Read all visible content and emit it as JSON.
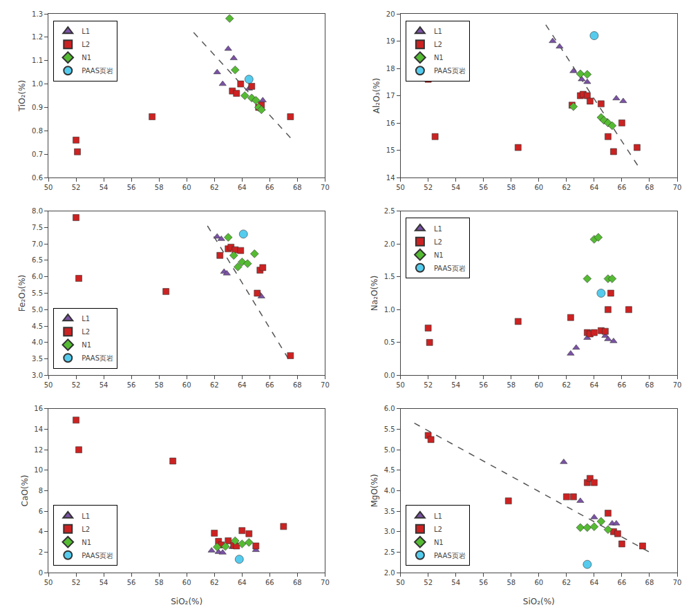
{
  "chart_data": [
    {
      "type": "scatter",
      "ylabel": "TiO₂(%)",
      "xlim": [
        50,
        70
      ],
      "xticks": [
        50,
        52,
        54,
        56,
        58,
        60,
        62,
        64,
        66,
        68,
        70
      ],
      "ylim": [
        0.6,
        1.3
      ],
      "yticks": [
        0.6,
        0.7,
        0.8,
        0.9,
        {
          "value": 1.0,
          "label": "1.0"
        },
        1.1,
        1.2,
        1.3
      ],
      "legend": "upper left",
      "grid": false,
      "series": [
        {
          "type": "line",
          "color": "#555555",
          "line_style": "dashed",
          "x": [
            60.5,
            67.5
          ],
          "values": [
            1.22,
            0.77
          ]
        },
        {
          "name": "L1",
          "color": "#7B52A6",
          "marker": "triangle-up",
          "x": [
            62.2,
            62.6,
            63.0,
            63.4,
            64.5,
            65.5
          ],
          "values": [
            1.05,
            1.0,
            1.15,
            1.11,
            0.98,
            0.93
          ]
        },
        {
          "name": "L2",
          "color": "#CC2222",
          "marker": "square",
          "x": [
            52.0,
            52.1,
            57.5,
            63.3,
            63.6,
            63.9,
            64.7,
            65.2,
            65.4,
            67.5
          ],
          "values": [
            0.76,
            0.71,
            0.86,
            0.97,
            0.96,
            1.0,
            0.99,
            0.9,
            0.91,
            0.86
          ]
        },
        {
          "name": "N1",
          "color": "#55BB33",
          "marker": "diamond",
          "x": [
            63.1,
            63.5,
            64.2,
            64.7,
            65.0,
            65.2,
            65.4
          ],
          "values": [
            1.28,
            1.06,
            0.95,
            0.94,
            0.93,
            0.9,
            0.89
          ]
        },
        {
          "name": "PAAS页岩",
          "color": "#55CCEE",
          "marker": "circle",
          "x": [
            64.5
          ],
          "values": [
            1.02
          ]
        }
      ]
    },
    {
      "type": "scatter",
      "ylabel": "Al₂O₃(%)",
      "xlim": [
        50,
        70
      ],
      "xticks": [
        50,
        52,
        54,
        56,
        58,
        60,
        62,
        64,
        66,
        68,
        70
      ],
      "ylim": [
        14,
        20
      ],
      "yticks": [
        14,
        15,
        16,
        17,
        18,
        19,
        20
      ],
      "legend": "upper left",
      "grid": false,
      "series": [
        {
          "type": "line",
          "color": "#555555",
          "line_style": "dashed",
          "x": [
            60.5,
            67.2
          ],
          "values": [
            19.6,
            14.4
          ]
        },
        {
          "name": "L1",
          "color": "#7B52A6",
          "marker": "triangle-up",
          "x": [
            61.0,
            61.5,
            62.5,
            63.1,
            63.5,
            65.6,
            66.1
          ],
          "values": [
            19.0,
            18.8,
            17.9,
            17.6,
            17.5,
            16.9,
            16.8
          ]
        },
        {
          "name": "L2",
          "color": "#CC2222",
          "marker": "square",
          "x": [
            52.0,
            52.5,
            58.5,
            62.4,
            63.0,
            63.2,
            63.5,
            63.7,
            64.5,
            65.0,
            65.4,
            66.0,
            67.1
          ],
          "values": [
            17.6,
            15.5,
            15.1,
            16.65,
            17.0,
            17.05,
            17.0,
            16.8,
            16.7,
            15.5,
            14.95,
            16.0,
            15.1
          ]
        },
        {
          "name": "N1",
          "color": "#55BB33",
          "marker": "diamond",
          "x": [
            62.5,
            63.0,
            63.5,
            64.5,
            64.7,
            65.0,
            65.3
          ],
          "values": [
            16.6,
            17.8,
            17.78,
            16.2,
            16.1,
            16.0,
            15.9
          ]
        },
        {
          "name": "PAAS页岩",
          "color": "#55CCEE",
          "marker": "circle",
          "x": [
            64.0
          ],
          "values": [
            19.2
          ]
        }
      ]
    },
    {
      "type": "scatter",
      "ylabel": "Fe₂O₃(%)",
      "xlim": [
        50,
        70
      ],
      "xticks": [
        50,
        52,
        54,
        56,
        58,
        60,
        62,
        64,
        66,
        68,
        70
      ],
      "ylim": [
        3.0,
        8.0
      ],
      "yticks": [
        {
          "value": 3.0,
          "label": "3.0"
        },
        3.5,
        {
          "value": 4.0,
          "label": "4.0"
        },
        4.5,
        {
          "value": 5.0,
          "label": "5.0"
        },
        5.5,
        {
          "value": 6.0,
          "label": "6.0"
        },
        6.5,
        {
          "value": 7.0,
          "label": "7.0"
        },
        7.5,
        {
          "value": 8.0,
          "label": "8.0"
        }
      ],
      "legend": "lower left",
      "grid": false,
      "series": [
        {
          "type": "line",
          "color": "#555555",
          "line_style": "dashed",
          "x": [
            61.5,
            67.5
          ],
          "values": [
            7.55,
            3.4
          ]
        },
        {
          "name": "L1",
          "color": "#7B52A6",
          "marker": "triangle-up",
          "x": [
            62.2,
            62.5,
            62.7,
            62.9,
            65.2,
            65.4
          ],
          "values": [
            7.22,
            7.15,
            6.15,
            6.1,
            5.5,
            5.4
          ]
        },
        {
          "name": "L2",
          "color": "#CC2222",
          "marker": "square",
          "x": [
            52.0,
            52.2,
            58.5,
            62.4,
            63.0,
            63.2,
            63.5,
            63.9,
            65.1,
            65.3,
            65.5,
            67.5
          ],
          "values": [
            7.8,
            5.95,
            5.55,
            6.65,
            6.85,
            6.9,
            6.82,
            6.8,
            5.5,
            6.2,
            6.28,
            3.6
          ]
        },
        {
          "name": "N1",
          "color": "#55BB33",
          "marker": "diamond",
          "x": [
            63.0,
            63.4,
            63.7,
            64.0,
            64.4,
            64.9
          ],
          "values": [
            7.2,
            6.65,
            6.3,
            6.45,
            6.4,
            6.7
          ]
        },
        {
          "name": "PAAS页岩",
          "color": "#55CCEE",
          "marker": "circle",
          "x": [
            64.1
          ],
          "values": [
            7.3
          ]
        }
      ]
    },
    {
      "type": "scatter",
      "ylabel": "Na₂O(%)",
      "xlim": [
        50,
        70
      ],
      "xticks": [
        50,
        52,
        54,
        56,
        58,
        60,
        62,
        64,
        66,
        68,
        70
      ],
      "ylim": [
        0,
        2.5
      ],
      "yticks": [
        {
          "value": 0,
          "label": "0.0"
        },
        0.5,
        {
          "value": 1.0,
          "label": "1.0"
        },
        1.5,
        {
          "value": 2.0,
          "label": "2.0"
        },
        2.5
      ],
      "legend": "upper left",
      "grid": false,
      "series": [
        {
          "name": "L1",
          "color": "#7B52A6",
          "marker": "triangle-up",
          "x": [
            62.3,
            62.7,
            63.5,
            63.7,
            64.8,
            65.0,
            65.4
          ],
          "values": [
            0.33,
            0.42,
            0.57,
            0.64,
            0.6,
            0.55,
            0.52
          ]
        },
        {
          "name": "L2",
          "color": "#CC2222",
          "marker": "square",
          "x": [
            52.0,
            52.1,
            58.5,
            62.3,
            63.5,
            63.7,
            64.0,
            64.5,
            64.8,
            65.0,
            65.2,
            66.5
          ],
          "values": [
            0.72,
            0.5,
            0.82,
            0.88,
            0.65,
            0.63,
            0.65,
            0.68,
            0.67,
            1.0,
            1.25,
            1.0
          ]
        },
        {
          "name": "N1",
          "color": "#55BB33",
          "marker": "diamond",
          "x": [
            63.5,
            64.0,
            64.3,
            65.0,
            65.3
          ],
          "values": [
            1.47,
            2.07,
            2.1,
            1.47,
            1.47
          ]
        },
        {
          "name": "PAAS页岩",
          "color": "#55CCEE",
          "marker": "circle",
          "x": [
            64.5
          ],
          "values": [
            1.25
          ]
        }
      ]
    },
    {
      "type": "scatter",
      "ylabel": "CaO(%)",
      "xlabel": "SiO₂(%)",
      "xlim": [
        50,
        70
      ],
      "xticks": [
        50,
        52,
        54,
        56,
        58,
        60,
        62,
        64,
        66,
        68,
        70
      ],
      "ylim": [
        0,
        16
      ],
      "yticks": [
        0,
        2,
        4,
        6,
        8,
        10,
        12,
        14,
        16
      ],
      "legend": "lower left",
      "grid": false,
      "series": [
        {
          "name": "L1",
          "color": "#7B52A6",
          "marker": "triangle-up",
          "x": [
            61.8,
            62.3,
            62.6,
            63.3,
            65.0
          ],
          "values": [
            2.15,
            2.0,
            1.95,
            2.5,
            2.2
          ]
        },
        {
          "name": "L2",
          "color": "#CC2222",
          "marker": "square",
          "x": [
            52.0,
            52.2,
            59.0,
            62.0,
            62.3,
            62.5,
            63.0,
            63.4,
            63.6,
            64.0,
            64.5,
            65.0,
            67.0
          ],
          "values": [
            14.9,
            12.0,
            10.9,
            3.85,
            3.05,
            2.7,
            3.1,
            2.65,
            2.6,
            4.1,
            3.8,
            2.6,
            4.5
          ]
        },
        {
          "name": "N1",
          "color": "#55BB33",
          "marker": "diamond",
          "x": [
            62.2,
            62.8,
            63.5,
            64.0,
            64.5
          ],
          "values": [
            2.5,
            2.55,
            3.1,
            2.8,
            2.95
          ]
        },
        {
          "name": "PAAS页岩",
          "color": "#55CCEE",
          "marker": "circle",
          "x": [
            63.8
          ],
          "values": [
            1.3
          ]
        }
      ]
    },
    {
      "type": "scatter",
      "ylabel": "MgO(%)",
      "xlabel": "SiO₂(%)",
      "xlim": [
        50,
        70
      ],
      "xticks": [
        50,
        52,
        54,
        56,
        58,
        60,
        62,
        64,
        66,
        68,
        70
      ],
      "ylim": [
        2.0,
        6.0
      ],
      "yticks": [
        {
          "value": 2.0,
          "label": "2.0"
        },
        2.5,
        {
          "value": 3.0,
          "label": "3.0"
        },
        3.5,
        {
          "value": 4.0,
          "label": "4.0"
        },
        4.5,
        {
          "value": 5.0,
          "label": "5.0"
        },
        5.5,
        {
          "value": 6.0,
          "label": "6.0"
        }
      ],
      "legend": "lower left",
      "grid": false,
      "series": [
        {
          "type": "line",
          "color": "#555555",
          "line_style": "dashed",
          "x": [
            51.0,
            68.0
          ],
          "values": [
            5.65,
            2.5
          ]
        },
        {
          "name": "L1",
          "color": "#7B52A6",
          "marker": "triangle-up",
          "x": [
            61.8,
            63.0,
            64.0,
            65.3,
            65.6
          ],
          "values": [
            4.7,
            3.75,
            3.35,
            3.2,
            3.2
          ]
        },
        {
          "name": "L2",
          "color": "#CC2222",
          "marker": "square",
          "x": [
            52.0,
            52.2,
            57.8,
            62.0,
            62.5,
            63.5,
            63.7,
            64.0,
            65.0,
            65.4,
            65.7,
            66.0,
            67.5
          ],
          "values": [
            5.35,
            5.25,
            3.75,
            3.85,
            3.85,
            4.2,
            4.3,
            4.2,
            3.45,
            3.0,
            2.95,
            2.7,
            2.65
          ]
        },
        {
          "name": "N1",
          "color": "#55BB33",
          "marker": "diamond",
          "x": [
            63.0,
            63.5,
            64.0,
            64.5,
            65.0
          ],
          "values": [
            3.1,
            3.1,
            3.12,
            3.25,
            3.05
          ]
        },
        {
          "name": "PAAS页岩",
          "color": "#55CCEE",
          "marker": "circle",
          "x": [
            63.5
          ],
          "values": [
            2.2
          ]
        }
      ]
    }
  ]
}
